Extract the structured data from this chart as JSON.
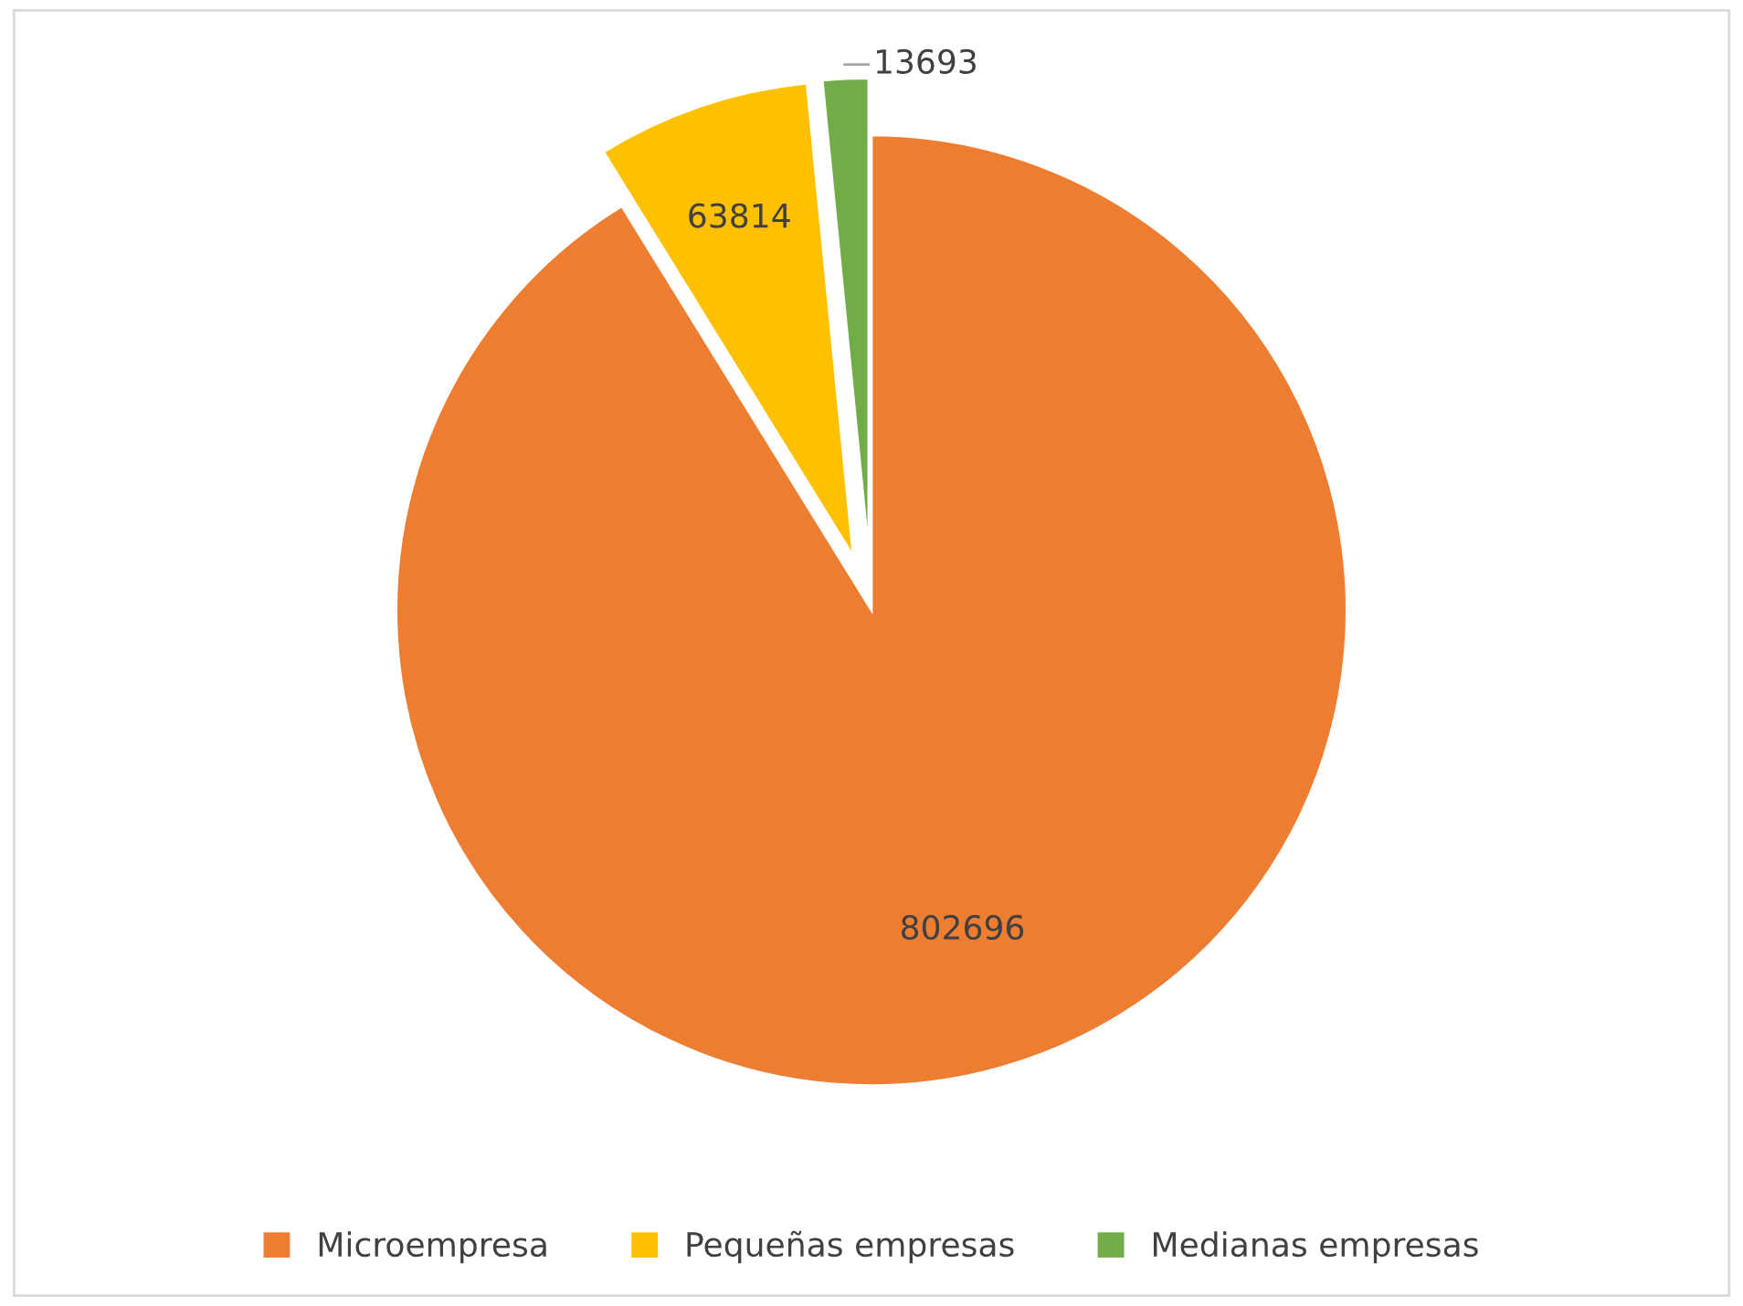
{
  "chart_data": {
    "type": "pie",
    "categories": [
      "Microempresa",
      "Pequeñas empresas",
      "Medianas empresas"
    ],
    "values": [
      802696,
      63814,
      13693
    ],
    "colors": [
      "#ed7d31",
      "#ffc000",
      "#70ad47"
    ],
    "data_labels": true,
    "legend": "bottom"
  }
}
